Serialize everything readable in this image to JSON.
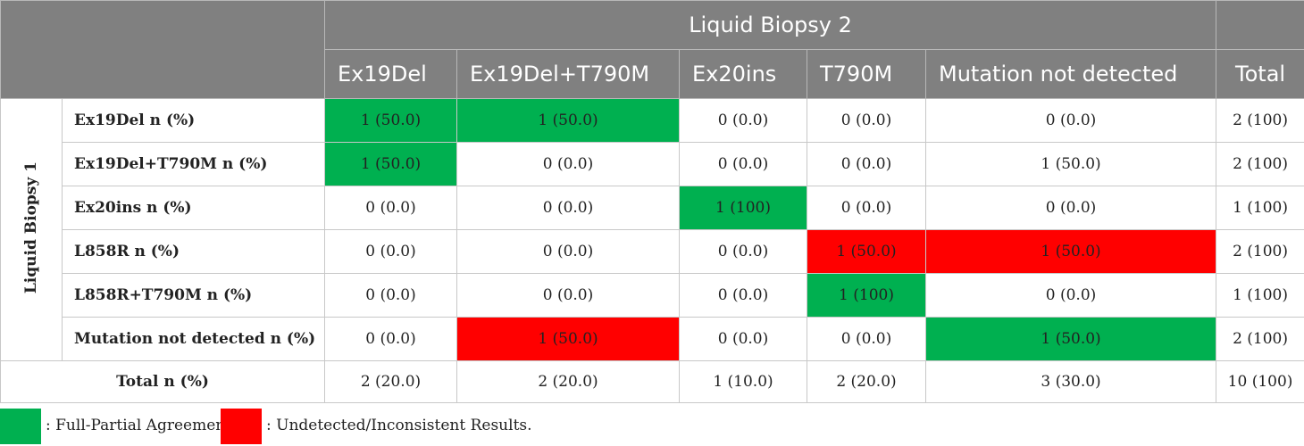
{
  "table": {
    "group_header": "Liquid Biopsy 2",
    "row_group_label": "Liquid Biopsy 1",
    "columns": [
      "Ex19Del",
      "Ex19Del+T790M",
      "Ex20ins",
      "T790M",
      "Mutation not detected",
      "Total"
    ],
    "rows": [
      {
        "label": "Ex19Del n (%)",
        "cells": [
          "1 (50.0)",
          "1 (50.0)",
          "0 (0.0)",
          "0 (0.0)",
          "0 (0.0)",
          "2 (100)"
        ]
      },
      {
        "label": "Ex19Del+T790M n (%)",
        "cells": [
          "1 (50.0)",
          "0 (0.0)",
          "0 (0.0)",
          "0 (0.0)",
          "1 (50.0)",
          "2 (100)"
        ]
      },
      {
        "label": "Ex20ins n (%)",
        "cells": [
          "0 (0.0)",
          "0 (0.0)",
          "1 (100)",
          "0 (0.0)",
          "0 (0.0)",
          "1 (100)"
        ]
      },
      {
        "label": "L858R n (%)",
        "cells": [
          "0 (0.0)",
          "0 (0.0)",
          "0 (0.0)",
          "1 (50.0)",
          "1 (50.0)",
          "2 (100)"
        ]
      },
      {
        "label": "L858R+T790M n (%)",
        "cells": [
          "0 (0.0)",
          "0 (0.0)",
          "0 (0.0)",
          "1 (100)",
          "0 (0.0)",
          "1 (100)"
        ]
      },
      {
        "label": "Mutation not detected n (%)",
        "cells": [
          "0 (0.0)",
          "1 (50.0)",
          "0 (0.0)",
          "0 (0.0)",
          "1 (50.0)",
          "2 (100)"
        ]
      }
    ],
    "total_row": {
      "label": "Total n (%)",
      "cells": [
        "2 (20.0)",
        "2 (20.0)",
        "1 (10.0)",
        "2 (20.0)",
        "3 (30.0)",
        "10 (100)"
      ]
    }
  },
  "legend": {
    "green_label": ": Full-Partial Agreement",
    "red_label": ": Undetected/Inconsistent Results."
  },
  "colors": {
    "header_bg": "#808080",
    "agreement_green": "#00b050",
    "inconsistent_red": "#ff0000"
  }
}
